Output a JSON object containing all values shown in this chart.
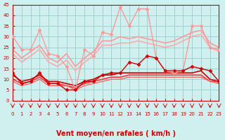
{
  "background_color": "#d0f0f0",
  "grid_color": "#a0d0d0",
  "xlabel": "Vent moyen/en rafales ( km/h )",
  "xlabel_color": "#cc0000",
  "xlabel_fontsize": 7,
  "title": "",
  "xlim": [
    0,
    23
  ],
  "ylim": [
    0,
    45
  ],
  "yticks": [
    0,
    5,
    10,
    15,
    20,
    25,
    30,
    35,
    40,
    45
  ],
  "xticks": [
    0,
    1,
    2,
    3,
    4,
    5,
    6,
    7,
    8,
    9,
    10,
    11,
    12,
    13,
    14,
    15,
    16,
    17,
    18,
    19,
    20,
    21,
    22,
    23
  ],
  "series": [
    {
      "x": [
        0,
        1,
        2,
        3,
        4,
        5,
        6,
        7,
        8,
        9,
        10,
        11,
        12,
        13,
        14,
        15,
        16,
        17,
        18,
        19,
        20,
        21,
        22,
        23
      ],
      "y": [
        30,
        24,
        24,
        33,
        22,
        21,
        16,
        5,
        24,
        21,
        32,
        31,
        44,
        35,
        43,
        43,
        20,
        14,
        13,
        14,
        35,
        35,
        25,
        24
      ],
      "color": "#ff9999",
      "linewidth": 1.0,
      "marker": "D",
      "markersize": 2.5,
      "zorder": 3
    },
    {
      "x": [
        0,
        1,
        2,
        3,
        4,
        5,
        6,
        7,
        8,
        9,
        10,
        11,
        12,
        13,
        14,
        15,
        16,
        17,
        18,
        19,
        20,
        21,
        22,
        23
      ],
      "y": [
        24,
        20,
        23,
        26,
        20,
        18,
        22,
        16,
        20,
        23,
        28,
        28,
        30,
        29,
        30,
        29,
        28,
        27,
        28,
        30,
        32,
        33,
        27,
        25
      ],
      "color": "#ff9999",
      "linewidth": 1.2,
      "marker": null,
      "markersize": 0,
      "zorder": 2
    },
    {
      "x": [
        0,
        1,
        2,
        3,
        4,
        5,
        6,
        7,
        8,
        9,
        10,
        11,
        12,
        13,
        14,
        15,
        16,
        17,
        18,
        19,
        20,
        21,
        22,
        23
      ],
      "y": [
        22,
        18,
        21,
        24,
        18,
        16,
        19,
        14,
        18,
        21,
        26,
        26,
        27,
        27,
        28,
        27,
        26,
        25,
        26,
        28,
        30,
        31,
        25,
        23
      ],
      "color": "#ffaaaa",
      "linewidth": 1.2,
      "marker": null,
      "markersize": 0,
      "zorder": 2
    },
    {
      "x": [
        0,
        1,
        2,
        3,
        4,
        5,
        6,
        7,
        8,
        9,
        10,
        11,
        12,
        13,
        14,
        15,
        16,
        17,
        18,
        19,
        20,
        21,
        22,
        23
      ],
      "y": [
        13,
        8,
        9,
        13,
        8,
        8,
        5,
        5,
        9,
        9,
        12,
        13,
        13,
        18,
        17,
        21,
        20,
        14,
        14,
        14,
        16,
        15,
        14,
        9
      ],
      "color": "#cc0000",
      "linewidth": 1.0,
      "marker": "D",
      "markersize": 2.5,
      "zorder": 3
    },
    {
      "x": [
        0,
        1,
        2,
        3,
        4,
        5,
        6,
        7,
        8,
        9,
        10,
        11,
        12,
        13,
        14,
        15,
        16,
        17,
        18,
        19,
        20,
        21,
        22,
        23
      ],
      "y": [
        12,
        9,
        10,
        12,
        9,
        9,
        8,
        7,
        9,
        10,
        12,
        12,
        13,
        13,
        13,
        13,
        13,
        13,
        13,
        13,
        13,
        14,
        10,
        9
      ],
      "color": "#cc0000",
      "linewidth": 1.2,
      "marker": null,
      "markersize": 0,
      "zorder": 2
    },
    {
      "x": [
        0,
        1,
        2,
        3,
        4,
        5,
        6,
        7,
        8,
        9,
        10,
        11,
        12,
        13,
        14,
        15,
        16,
        17,
        18,
        19,
        20,
        21,
        22,
        23
      ],
      "y": [
        10,
        8,
        9,
        11,
        8,
        8,
        7,
        6,
        8,
        9,
        10,
        11,
        11,
        12,
        12,
        12,
        12,
        12,
        12,
        12,
        12,
        12,
        9,
        9
      ],
      "color": "#ff3333",
      "linewidth": 1.2,
      "marker": null,
      "markersize": 0,
      "zorder": 2
    },
    {
      "x": [
        0,
        1,
        2,
        3,
        4,
        5,
        6,
        7,
        8,
        9,
        10,
        11,
        12,
        13,
        14,
        15,
        16,
        17,
        18,
        19,
        20,
        21,
        22,
        23
      ],
      "y": [
        9,
        7,
        8,
        10,
        7,
        7,
        7,
        5,
        7,
        8,
        9,
        10,
        10,
        11,
        11,
        11,
        11,
        11,
        11,
        11,
        11,
        11,
        9,
        8
      ],
      "color": "#ff6666",
      "linewidth": 1.0,
      "marker": null,
      "markersize": 0,
      "zorder": 2
    }
  ],
  "arrow_color": "#cc0000",
  "tick_fontsize": 5,
  "tick_color": "#cc0000"
}
